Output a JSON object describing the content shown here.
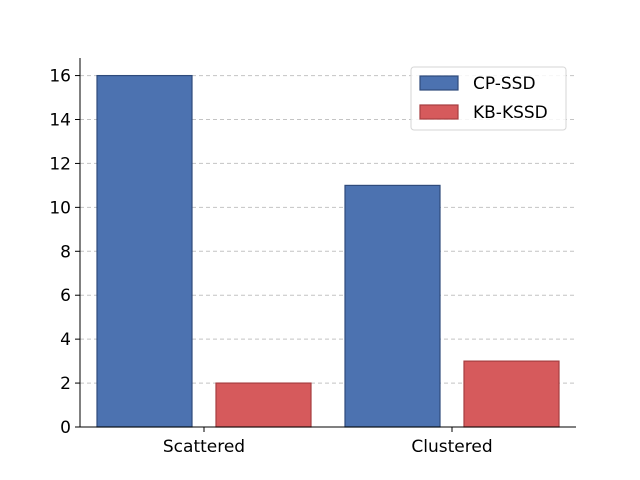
{
  "chart_data": {
    "type": "bar",
    "categories": [
      "Scattered",
      "Clustered"
    ],
    "series": [
      {
        "name": "CP-SSD",
        "values": [
          16,
          11
        ],
        "color": "#4c72b0",
        "edge": "#2f4b7c"
      },
      {
        "name": "KB-KSSD",
        "values": [
          2,
          3
        ],
        "color": "#d65a5c",
        "edge": "#a63e40"
      }
    ],
    "title": "",
    "xlabel": "",
    "ylabel": "",
    "ylim": [
      0,
      16.8
    ],
    "yticks": [
      0,
      2,
      4,
      6,
      8,
      10,
      12,
      14,
      16
    ],
    "grid": "y-dashed",
    "legend": "top-right"
  }
}
